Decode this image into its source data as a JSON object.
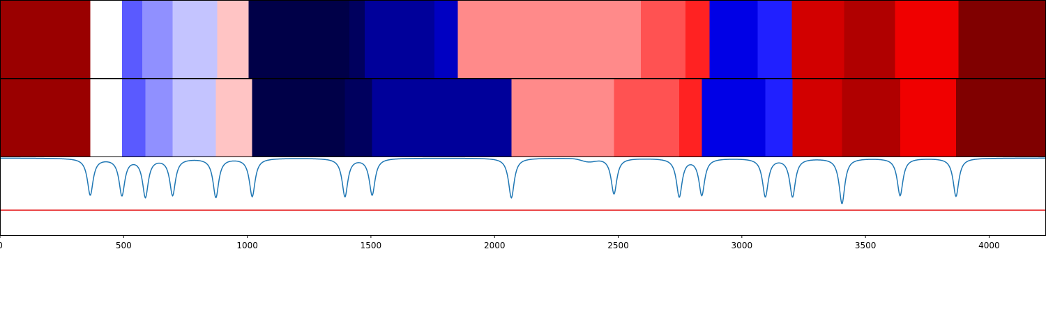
{
  "chart_data": {
    "type": "heatmap",
    "title": "",
    "xlabel": "",
    "ylabel": "",
    "xlim": [
      0,
      4230
    ],
    "x_ticks": [
      {
        "value": 0,
        "label": "0"
      },
      {
        "value": 500,
        "label": "500"
      },
      {
        "value": 1000,
        "label": "1000"
      },
      {
        "value": 1500,
        "label": "1500"
      },
      {
        "value": 2000,
        "label": "2000"
      },
      {
        "value": 2500,
        "label": "2500"
      },
      {
        "value": 3000,
        "label": "3000"
      },
      {
        "value": 3500,
        "label": "3500"
      },
      {
        "value": 4000,
        "label": "4000"
      }
    ],
    "grid": false,
    "tracks": [
      {
        "segments": [
          {
            "start": 0,
            "end": 365,
            "color": "#9a0000"
          },
          {
            "start": 365,
            "end": 493,
            "color": "#ffffff"
          },
          {
            "start": 493,
            "end": 575,
            "color": "#5a5aff"
          },
          {
            "start": 575,
            "end": 698,
            "color": "#9090ff"
          },
          {
            "start": 698,
            "end": 878,
            "color": "#c4c4ff"
          },
          {
            "start": 878,
            "end": 1005,
            "color": "#ffc4c4"
          },
          {
            "start": 1005,
            "end": 1413,
            "color": "#000048"
          },
          {
            "start": 1413,
            "end": 1475,
            "color": "#00005e"
          },
          {
            "start": 1475,
            "end": 1757,
            "color": "#00009a"
          },
          {
            "start": 1757,
            "end": 1852,
            "color": "#0000c2"
          },
          {
            "start": 1852,
            "end": 2591,
            "color": "#ff8a8a"
          },
          {
            "start": 2591,
            "end": 2772,
            "color": "#ff5252"
          },
          {
            "start": 2772,
            "end": 2870,
            "color": "#ff2222"
          },
          {
            "start": 2870,
            "end": 3064,
            "color": "#0000e6"
          },
          {
            "start": 3064,
            "end": 3202,
            "color": "#2020ff"
          },
          {
            "start": 3202,
            "end": 3413,
            "color": "#d20000"
          },
          {
            "start": 3413,
            "end": 3620,
            "color": "#b00000"
          },
          {
            "start": 3620,
            "end": 3876,
            "color": "#f00000"
          },
          {
            "start": 3876,
            "end": 4230,
            "color": "#800000"
          }
        ]
      },
      {
        "segments": [
          {
            "start": 0,
            "end": 365,
            "color": "#9a0000"
          },
          {
            "start": 365,
            "end": 493,
            "color": "#ffffff"
          },
          {
            "start": 493,
            "end": 588,
            "color": "#5a5aff"
          },
          {
            "start": 588,
            "end": 698,
            "color": "#9090ff"
          },
          {
            "start": 698,
            "end": 873,
            "color": "#c4c4ff"
          },
          {
            "start": 873,
            "end": 1020,
            "color": "#ffc4c4"
          },
          {
            "start": 1020,
            "end": 1395,
            "color": "#000048"
          },
          {
            "start": 1395,
            "end": 1505,
            "color": "#00005e"
          },
          {
            "start": 1505,
            "end": 2068,
            "color": "#00009a"
          },
          {
            "start": 2068,
            "end": 2483,
            "color": "#ff8a8a"
          },
          {
            "start": 2483,
            "end": 2747,
            "color": "#ff5252"
          },
          {
            "start": 2747,
            "end": 2838,
            "color": "#ff2222"
          },
          {
            "start": 2838,
            "end": 3095,
            "color": "#0000e6"
          },
          {
            "start": 3095,
            "end": 3205,
            "color": "#2020ff"
          },
          {
            "start": 3205,
            "end": 3405,
            "color": "#d20000"
          },
          {
            "start": 3405,
            "end": 3640,
            "color": "#b00000"
          },
          {
            "start": 3640,
            "end": 3866,
            "color": "#f00000"
          },
          {
            "start": 3866,
            "end": 4230,
            "color": "#800000"
          }
        ]
      }
    ],
    "line_panel": {
      "ylim": [
        0,
        1
      ],
      "baseline": 0.99,
      "series_color": "#1f77b4",
      "dips": [
        {
          "x": 365,
          "depth": 0.47
        },
        {
          "x": 493,
          "depth": 0.47
        },
        {
          "x": 588,
          "depth": 0.49
        },
        {
          "x": 698,
          "depth": 0.47
        },
        {
          "x": 873,
          "depth": 0.5
        },
        {
          "x": 1020,
          "depth": 0.49
        },
        {
          "x": 1395,
          "depth": 0.49
        },
        {
          "x": 1505,
          "depth": 0.47
        },
        {
          "x": 2068,
          "depth": 0.51
        },
        {
          "x": 2483,
          "depth": 0.46
        },
        {
          "x": 2747,
          "depth": 0.49
        },
        {
          "x": 2838,
          "depth": 0.47
        },
        {
          "x": 3095,
          "depth": 0.49
        },
        {
          "x": 3205,
          "depth": 0.49
        },
        {
          "x": 3405,
          "depth": 0.58
        },
        {
          "x": 3640,
          "depth": 0.48
        },
        {
          "x": 3866,
          "depth": 0.49
        }
      ],
      "bump": {
        "x": 2380,
        "depth": 0.04
      },
      "threshold": 0.32,
      "threshold_color": "#e41a1c"
    }
  }
}
